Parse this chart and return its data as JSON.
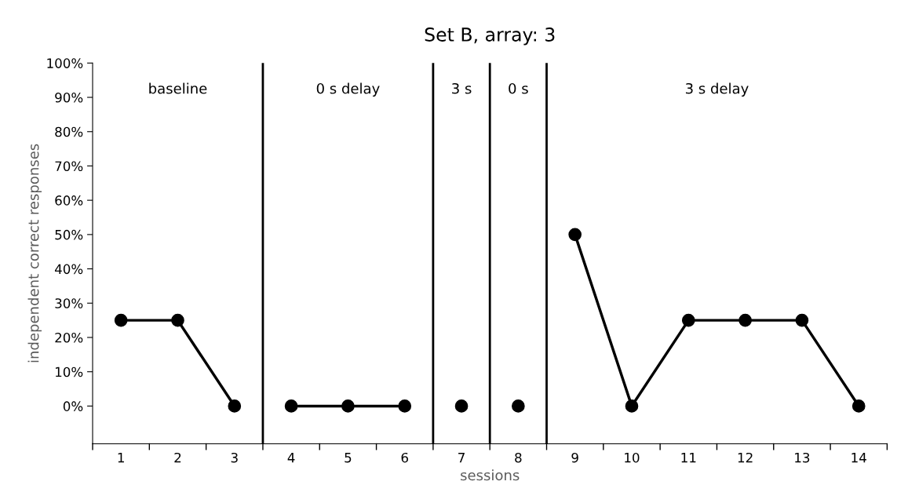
{
  "chart_data": {
    "type": "line",
    "title": "Set B, array: 3",
    "xlabel": "sessions",
    "ylabel": "independent correct responses",
    "x": [
      1,
      2,
      3,
      4,
      5,
      6,
      7,
      8,
      9,
      10,
      11,
      12,
      13,
      14
    ],
    "series": [
      {
        "color": "#000000",
        "values": [
          25,
          25,
          0,
          null,
          null,
          null,
          null,
          null,
          null,
          null,
          null,
          null,
          null,
          null
        ]
      },
      {
        "color": "#000000",
        "values": [
          null,
          null,
          null,
          0,
          0,
          0,
          null,
          null,
          null,
          null,
          null,
          null,
          null,
          null
        ]
      },
      {
        "color": "#000000",
        "values": [
          null,
          null,
          null,
          null,
          null,
          null,
          0,
          null,
          null,
          null,
          null,
          null,
          null,
          null
        ]
      },
      {
        "color": "#000000",
        "values": [
          null,
          null,
          null,
          null,
          null,
          null,
          null,
          0,
          null,
          null,
          null,
          null,
          null,
          null
        ]
      },
      {
        "color": "#000000",
        "values": [
          null,
          null,
          null,
          null,
          null,
          null,
          null,
          null,
          50,
          0,
          25,
          25,
          25,
          0
        ]
      }
    ],
    "xlim": [
      0.5,
      14.5
    ],
    "xticks": [
      1,
      2,
      3,
      4,
      5,
      6,
      7,
      8,
      9,
      10,
      11,
      12,
      13,
      14
    ],
    "ylim": [
      -11,
      100
    ],
    "yticks": [
      {
        "value": 0,
        "label": "0%"
      },
      {
        "value": 10,
        "label": "10%"
      },
      {
        "value": 20,
        "label": "20%"
      },
      {
        "value": 30,
        "label": "30%"
      },
      {
        "value": 40,
        "label": "40%"
      },
      {
        "value": 50,
        "label": "50%"
      },
      {
        "value": 60,
        "label": "60%"
      },
      {
        "value": 70,
        "label": "70%"
      },
      {
        "value": 80,
        "label": "80%"
      },
      {
        "value": 90,
        "label": "90%"
      },
      {
        "value": 100,
        "label": "100%"
      }
    ],
    "ref_lines": [
      {
        "axis": "x",
        "value": 3.5,
        "color": "#000000"
      },
      {
        "axis": "x",
        "value": 6.5,
        "color": "#000000"
      },
      {
        "axis": "x",
        "value": 7.5,
        "color": "#000000"
      },
      {
        "axis": "x",
        "value": 8.5,
        "color": "#000000"
      }
    ],
    "annotations": [
      "baseline",
      "0 s delay",
      "3 s",
      "0 s",
      "3 s delay"
    ],
    "marker": "circle",
    "line_style": "solid",
    "grid": false,
    "legend": false
  }
}
